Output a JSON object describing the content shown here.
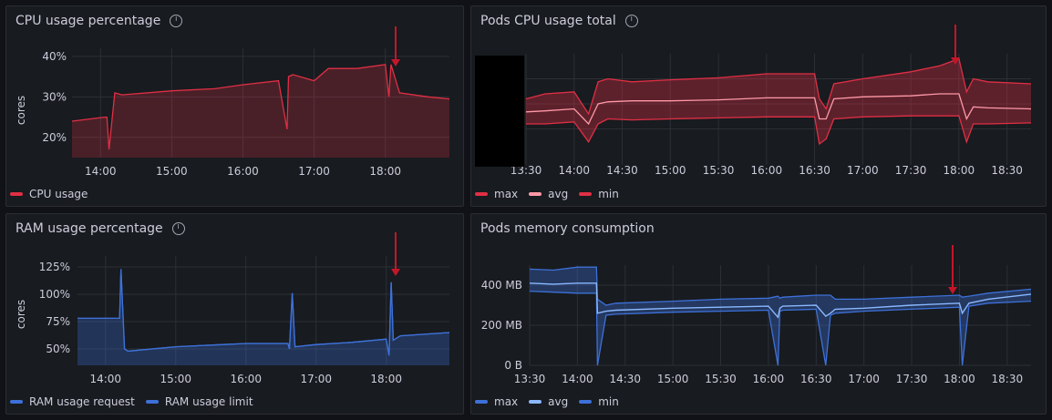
{
  "colors": {
    "red": "#e02f44",
    "red_light": "#ff99a6",
    "blue": "#3d71d9",
    "blue_light": "#8ab8ff",
    "arrow": "#c4162a"
  },
  "panels": {
    "cpu_pct": {
      "title": "CPU usage percentage",
      "y_unit": "cores",
      "y_ticks": [
        "40%",
        "30%",
        "20%"
      ],
      "x_ticks": [
        "14:00",
        "15:00",
        "16:00",
        "17:00",
        "18:00"
      ],
      "legend": [
        {
          "label": "CPU usage",
          "color": "#e02f44"
        }
      ]
    },
    "pods_cpu": {
      "title": "Pods CPU usage total",
      "x_ticks": [
        "13:30",
        "14:00",
        "14:30",
        "15:00",
        "15:30",
        "16:00",
        "16:30",
        "17:00",
        "17:30",
        "18:00",
        "18:30"
      ],
      "legend": [
        {
          "label": "max",
          "color": "#e02f44"
        },
        {
          "label": "avg",
          "color": "#ff99a6"
        },
        {
          "label": "min",
          "color": "#e02f44"
        }
      ]
    },
    "ram_pct": {
      "title": "RAM usage percentage",
      "y_unit": "cores",
      "y_ticks": [
        "125%",
        "100%",
        "75%",
        "50%"
      ],
      "x_ticks": [
        "14:00",
        "15:00",
        "16:00",
        "17:00",
        "18:00"
      ],
      "legend": [
        {
          "label": "RAM usage request",
          "color": "#3d71d9"
        },
        {
          "label": "RAM usage limit",
          "color": "#3d71d9"
        }
      ]
    },
    "pods_mem": {
      "title": "Pods memory consumption",
      "y_ticks": [
        "400 MB",
        "200 MB",
        "0 B"
      ],
      "x_ticks": [
        "13:30",
        "14:00",
        "14:30",
        "15:00",
        "15:30",
        "16:00",
        "16:30",
        "17:00",
        "17:30",
        "18:00",
        "18:30"
      ],
      "legend": [
        {
          "label": "max",
          "color": "#3d71d9"
        },
        {
          "label": "avg",
          "color": "#8ab8ff"
        },
        {
          "label": "min",
          "color": "#3d71d9"
        }
      ]
    }
  },
  "chart_data": [
    {
      "type": "area",
      "title": "CPU usage percentage",
      "ylabel": "cores",
      "ylim": [
        15,
        42
      ],
      "x_hours": [
        13.6,
        14.05,
        14.09,
        14.12,
        14.2,
        14.3,
        15.0,
        15.6,
        16.0,
        16.5,
        16.62,
        16.64,
        16.7,
        17.0,
        17.2,
        17.6,
        18.0,
        18.05,
        18.08,
        18.2,
        18.6,
        18.9
      ],
      "series": [
        {
          "name": "CPU usage",
          "values": [
            24,
            25,
            25,
            17,
            31,
            30.5,
            31.5,
            32,
            33,
            34,
            22,
            35,
            35.5,
            34,
            37,
            37,
            38,
            30,
            38,
            31,
            30,
            29.5
          ]
        }
      ]
    },
    {
      "type": "area",
      "title": "Pods CPU usage total",
      "ylim": [
        0,
        1
      ],
      "x_hours": [
        13.5,
        13.7,
        14.0,
        14.15,
        14.25,
        14.35,
        14.6,
        15.0,
        15.5,
        16.0,
        16.5,
        16.55,
        16.62,
        16.7,
        17.0,
        17.5,
        17.8,
        18.0,
        18.08,
        18.15,
        18.3,
        18.75
      ],
      "series": [
        {
          "name": "max",
          "values": [
            0.55,
            0.6,
            0.62,
            0.4,
            0.72,
            0.75,
            0.72,
            0.74,
            0.76,
            0.8,
            0.8,
            0.55,
            0.45,
            0.7,
            0.75,
            0.82,
            0.88,
            0.95,
            0.62,
            0.75,
            0.72,
            0.7
          ]
        },
        {
          "name": "avg",
          "values": [
            0.42,
            0.43,
            0.45,
            0.3,
            0.5,
            0.52,
            0.53,
            0.53,
            0.54,
            0.56,
            0.56,
            0.35,
            0.35,
            0.55,
            0.57,
            0.58,
            0.6,
            0.6,
            0.35,
            0.47,
            0.46,
            0.45
          ]
        },
        {
          "name": "min",
          "values": [
            0.3,
            0.3,
            0.32,
            0.12,
            0.3,
            0.35,
            0.34,
            0.35,
            0.36,
            0.37,
            0.37,
            0.1,
            0.15,
            0.35,
            0.37,
            0.38,
            0.38,
            0.38,
            0.12,
            0.3,
            0.3,
            0.31
          ]
        }
      ]
    },
    {
      "type": "area",
      "title": "RAM usage percentage",
      "ylabel": "cores",
      "ylim": [
        35,
        135
      ],
      "x_hours": [
        13.6,
        14.2,
        14.22,
        14.27,
        14.32,
        15.0,
        16.0,
        16.6,
        16.62,
        16.66,
        16.7,
        17.0,
        17.5,
        18.0,
        18.04,
        18.07,
        18.1,
        18.2,
        18.9
      ],
      "series": [
        {
          "name": "RAM usage request",
          "values": [
            78,
            78,
            123,
            50,
            48,
            52,
            55,
            55,
            50,
            101,
            52,
            54,
            56,
            59,
            44,
            111,
            58,
            62,
            65
          ]
        },
        {
          "name": "RAM usage limit",
          "values": [
            78,
            78,
            123,
            50,
            48,
            52,
            55,
            55,
            50,
            101,
            52,
            54,
            56,
            59,
            44,
            111,
            58,
            62,
            65
          ]
        }
      ]
    },
    {
      "type": "area",
      "title": "Pods memory consumption",
      "ylim": [
        0,
        500
      ],
      "x_hours": [
        13.5,
        13.75,
        14.0,
        14.2,
        14.21,
        14.3,
        14.4,
        15.0,
        15.5,
        16.0,
        16.1,
        16.12,
        16.15,
        16.5,
        16.6,
        16.65,
        16.7,
        17.0,
        17.5,
        18.0,
        18.03,
        18.1,
        18.3,
        18.75
      ],
      "series": [
        {
          "name": "max",
          "values": [
            480,
            475,
            490,
            490,
            330,
            300,
            310,
            320,
            330,
            335,
            345,
            335,
            340,
            350,
            350,
            350,
            330,
            330,
            340,
            350,
            340,
            345,
            360,
            380
          ]
        },
        {
          "name": "avg",
          "values": [
            410,
            405,
            410,
            410,
            260,
            270,
            275,
            285,
            290,
            295,
            240,
            285,
            295,
            300,
            245,
            260,
            280,
            285,
            300,
            310,
            260,
            310,
            330,
            355
          ]
        },
        {
          "name": "min",
          "values": [
            370,
            365,
            360,
            360,
            0,
            250,
            255,
            265,
            270,
            275,
            0,
            270,
            275,
            280,
            0,
            250,
            260,
            270,
            280,
            290,
            0,
            295,
            310,
            320
          ]
        }
      ]
    }
  ]
}
